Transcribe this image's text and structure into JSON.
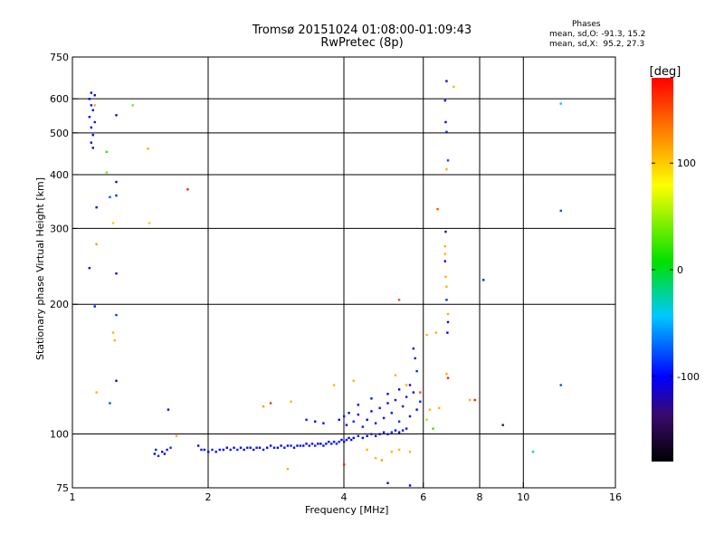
{
  "header": {
    "title_line1": "Tromsø 20151024 01:08:00-01:09:43",
    "title_line2": "RwPretec (8p)",
    "phases_title": "Phases",
    "phases_line1": "mean, sd,O: -91.3, 15.2",
    "phases_line2": "mean, sd,X:  95.2, 27.3"
  },
  "colorbar": {
    "unit": "[deg]",
    "ticks": [
      {
        "value": 100,
        "label": "100"
      },
      {
        "value": 0,
        "label": "0"
      },
      {
        "value": -100,
        "label": "-100"
      }
    ],
    "range": [
      -180,
      180
    ]
  },
  "chart_data": {
    "type": "scatter",
    "xlabel": "Frequency [MHz]",
    "ylabel": "Stationary phase Virtual Height [km]",
    "x_scale": "log",
    "y_scale": "log",
    "xlim": [
      1,
      16
    ],
    "ylim": [
      75,
      750
    ],
    "x_ticks": [
      1,
      2,
      4,
      6,
      8,
      10,
      16
    ],
    "y_ticks": [
      75,
      100,
      200,
      300,
      400,
      500,
      600,
      750
    ],
    "x_grid": [
      2,
      4,
      6,
      8,
      10
    ],
    "y_grid": [
      100,
      200,
      300,
      400,
      500,
      600
    ],
    "grid": true,
    "points": [
      {
        "x": 1.1,
        "y": 620,
        "phase": -105
      },
      {
        "x": 1.12,
        "y": 612,
        "phase": -110
      },
      {
        "x": 1.09,
        "y": 600,
        "phase": -100
      },
      {
        "x": 1.1,
        "y": 580,
        "phase": -95
      },
      {
        "x": 1.11,
        "y": 565,
        "phase": -108
      },
      {
        "x": 1.09,
        "y": 545,
        "phase": -100
      },
      {
        "x": 1.12,
        "y": 530,
        "phase": -95
      },
      {
        "x": 1.1,
        "y": 515,
        "phase": -110
      },
      {
        "x": 1.11,
        "y": 495,
        "phase": -100
      },
      {
        "x": 1.1,
        "y": 475,
        "phase": -115
      },
      {
        "x": 1.11,
        "y": 462,
        "phase": -105
      },
      {
        "x": 1.12,
        "y": 580,
        "phase": 110
      },
      {
        "x": 1.25,
        "y": 550,
        "phase": -110
      },
      {
        "x": 1.36,
        "y": 580,
        "phase": 40
      },
      {
        "x": 1.19,
        "y": 452,
        "phase": 20
      },
      {
        "x": 1.47,
        "y": 460,
        "phase": 110
      },
      {
        "x": 1.25,
        "y": 385,
        "phase": -120
      },
      {
        "x": 1.25,
        "y": 358,
        "phase": -90
      },
      {
        "x": 1.21,
        "y": 355,
        "phase": -75
      },
      {
        "x": 1.19,
        "y": 405,
        "phase": 40
      },
      {
        "x": 1.13,
        "y": 336,
        "phase": -110
      },
      {
        "x": 1.23,
        "y": 309,
        "phase": 100
      },
      {
        "x": 1.48,
        "y": 309,
        "phase": 100
      },
      {
        "x": 1.13,
        "y": 276,
        "phase": 120
      },
      {
        "x": 1.09,
        "y": 243,
        "phase": -100
      },
      {
        "x": 1.25,
        "y": 236,
        "phase": -105
      },
      {
        "x": 1.12,
        "y": 198,
        "phase": -95
      },
      {
        "x": 1.25,
        "y": 189,
        "phase": -85
      },
      {
        "x": 1.23,
        "y": 172,
        "phase": 110
      },
      {
        "x": 1.24,
        "y": 165,
        "phase": 110
      },
      {
        "x": 1.25,
        "y": 133,
        "phase": -105
      },
      {
        "x": 1.13,
        "y": 125,
        "phase": 110
      },
      {
        "x": 1.21,
        "y": 118,
        "phase": -80
      },
      {
        "x": 1.63,
        "y": 114,
        "phase": -100
      },
      {
        "x": 1.8,
        "y": 370,
        "phase": 170
      },
      {
        "x": 1.52,
        "y": 90,
        "phase": -100
      },
      {
        "x": 1.53,
        "y": 92,
        "phase": -95
      },
      {
        "x": 1.55,
        "y": 89,
        "phase": -90
      },
      {
        "x": 1.58,
        "y": 91,
        "phase": -110
      },
      {
        "x": 1.6,
        "y": 90,
        "phase": -100
      },
      {
        "x": 1.62,
        "y": 92,
        "phase": -95
      },
      {
        "x": 1.65,
        "y": 93,
        "phase": -90
      },
      {
        "x": 1.9,
        "y": 94,
        "phase": -100
      },
      {
        "x": 1.93,
        "y": 92,
        "phase": -95
      },
      {
        "x": 1.96,
        "y": 92,
        "phase": -100
      },
      {
        "x": 2.0,
        "y": 91,
        "phase": -105
      },
      {
        "x": 2.04,
        "y": 92,
        "phase": -90
      },
      {
        "x": 2.08,
        "y": 91,
        "phase": -100
      },
      {
        "x": 2.12,
        "y": 92,
        "phase": -95
      },
      {
        "x": 2.16,
        "y": 92,
        "phase": -100
      },
      {
        "x": 2.2,
        "y": 93,
        "phase": -110
      },
      {
        "x": 2.24,
        "y": 92,
        "phase": -95
      },
      {
        "x": 2.28,
        "y": 93,
        "phase": -100
      },
      {
        "x": 2.32,
        "y": 92,
        "phase": -90
      },
      {
        "x": 2.36,
        "y": 93,
        "phase": -100
      },
      {
        "x": 2.4,
        "y": 92,
        "phase": -105
      },
      {
        "x": 2.44,
        "y": 93,
        "phase": -95
      },
      {
        "x": 2.48,
        "y": 93,
        "phase": -100
      },
      {
        "x": 2.52,
        "y": 92,
        "phase": -110
      },
      {
        "x": 2.56,
        "y": 93,
        "phase": -95
      },
      {
        "x": 2.6,
        "y": 93,
        "phase": -100
      },
      {
        "x": 2.65,
        "y": 92,
        "phase": -90
      },
      {
        "x": 2.7,
        "y": 93,
        "phase": -100
      },
      {
        "x": 2.75,
        "y": 94,
        "phase": -105
      },
      {
        "x": 2.8,
        "y": 93,
        "phase": -95
      },
      {
        "x": 2.85,
        "y": 93,
        "phase": -100
      },
      {
        "x": 2.9,
        "y": 94,
        "phase": -110
      },
      {
        "x": 2.95,
        "y": 93,
        "phase": -95
      },
      {
        "x": 3.0,
        "y": 94,
        "phase": -100
      },
      {
        "x": 3.05,
        "y": 94,
        "phase": -90
      },
      {
        "x": 3.1,
        "y": 93,
        "phase": -100
      },
      {
        "x": 3.15,
        "y": 94,
        "phase": -105
      },
      {
        "x": 3.2,
        "y": 94,
        "phase": -95
      },
      {
        "x": 3.25,
        "y": 94,
        "phase": -100
      },
      {
        "x": 3.3,
        "y": 95,
        "phase": -110
      },
      {
        "x": 3.35,
        "y": 94,
        "phase": -95
      },
      {
        "x": 3.4,
        "y": 95,
        "phase": -100
      },
      {
        "x": 3.45,
        "y": 94,
        "phase": -90
      },
      {
        "x": 3.5,
        "y": 95,
        "phase": -100
      },
      {
        "x": 3.55,
        "y": 95,
        "phase": -105
      },
      {
        "x": 3.6,
        "y": 94,
        "phase": -95
      },
      {
        "x": 3.65,
        "y": 95,
        "phase": -100
      },
      {
        "x": 3.7,
        "y": 96,
        "phase": -110
      },
      {
        "x": 3.75,
        "y": 95,
        "phase": -95
      },
      {
        "x": 3.8,
        "y": 96,
        "phase": -100
      },
      {
        "x": 3.85,
        "y": 95,
        "phase": -90
      },
      {
        "x": 3.9,
        "y": 96,
        "phase": -100
      },
      {
        "x": 3.95,
        "y": 97,
        "phase": -105
      },
      {
        "x": 4.0,
        "y": 96,
        "phase": -95
      },
      {
        "x": 4.05,
        "y": 97,
        "phase": -100
      },
      {
        "x": 4.1,
        "y": 98,
        "phase": -110
      },
      {
        "x": 4.15,
        "y": 97,
        "phase": -95
      },
      {
        "x": 4.2,
        "y": 98,
        "phase": -100
      },
      {
        "x": 4.3,
        "y": 99,
        "phase": -90
      },
      {
        "x": 4.4,
        "y": 98,
        "phase": -100
      },
      {
        "x": 4.5,
        "y": 99,
        "phase": -105
      },
      {
        "x": 4.6,
        "y": 100,
        "phase": -95
      },
      {
        "x": 4.7,
        "y": 99,
        "phase": -100
      },
      {
        "x": 4.8,
        "y": 100,
        "phase": -110
      },
      {
        "x": 4.9,
        "y": 101,
        "phase": -95
      },
      {
        "x": 5.0,
        "y": 100,
        "phase": -100
      },
      {
        "x": 5.1,
        "y": 101,
        "phase": -90
      },
      {
        "x": 5.2,
        "y": 102,
        "phase": -100
      },
      {
        "x": 5.3,
        "y": 101,
        "phase": -105
      },
      {
        "x": 5.4,
        "y": 102,
        "phase": -95
      },
      {
        "x": 5.5,
        "y": 103,
        "phase": -100
      },
      {
        "x": 3.9,
        "y": 108,
        "phase": -100
      },
      {
        "x": 4.0,
        "y": 110,
        "phase": -95
      },
      {
        "x": 4.05,
        "y": 105,
        "phase": -105
      },
      {
        "x": 4.1,
        "y": 112,
        "phase": -100
      },
      {
        "x": 4.2,
        "y": 107,
        "phase": -90
      },
      {
        "x": 4.3,
        "y": 111,
        "phase": -100
      },
      {
        "x": 4.4,
        "y": 104,
        "phase": -95
      },
      {
        "x": 4.5,
        "y": 108,
        "phase": -100
      },
      {
        "x": 4.6,
        "y": 113,
        "phase": -110
      },
      {
        "x": 4.7,
        "y": 106,
        "phase": -100
      },
      {
        "x": 4.8,
        "y": 115,
        "phase": -95
      },
      {
        "x": 4.9,
        "y": 109,
        "phase": -100
      },
      {
        "x": 5.0,
        "y": 118,
        "phase": -105
      },
      {
        "x": 5.1,
        "y": 112,
        "phase": -95
      },
      {
        "x": 5.2,
        "y": 120,
        "phase": -100
      },
      {
        "x": 5.3,
        "y": 107,
        "phase": -90
      },
      {
        "x": 5.4,
        "y": 116,
        "phase": -100
      },
      {
        "x": 5.5,
        "y": 122,
        "phase": -95
      },
      {
        "x": 5.6,
        "y": 110,
        "phase": -100
      },
      {
        "x": 5.7,
        "y": 125,
        "phase": -110
      },
      {
        "x": 5.8,
        "y": 114,
        "phase": -100
      },
      {
        "x": 5.9,
        "y": 119,
        "phase": -95
      },
      {
        "x": 4.3,
        "y": 117,
        "phase": -100
      },
      {
        "x": 4.6,
        "y": 121,
        "phase": -95
      },
      {
        "x": 5.0,
        "y": 124,
        "phase": -100
      },
      {
        "x": 5.3,
        "y": 127,
        "phase": -105
      },
      {
        "x": 5.6,
        "y": 130,
        "phase": -100
      },
      {
        "x": 3.6,
        "y": 106,
        "phase": -100
      },
      {
        "x": 3.3,
        "y": 108,
        "phase": -95
      },
      {
        "x": 3.45,
        "y": 107,
        "phase": -100
      },
      {
        "x": 5.7,
        "y": 158,
        "phase": -100
      },
      {
        "x": 5.75,
        "y": 150,
        "phase": -95
      },
      {
        "x": 5.8,
        "y": 140,
        "phase": -90
      },
      {
        "x": 5.2,
        "y": 137,
        "phase": 110
      },
      {
        "x": 5.5,
        "y": 130,
        "phase": 110
      },
      {
        "x": 5.9,
        "y": 125,
        "phase": 150
      },
      {
        "x": 4.2,
        "y": 133,
        "phase": 110
      },
      {
        "x": 3.8,
        "y": 130,
        "phase": 110
      },
      {
        "x": 2.75,
        "y": 118,
        "phase": 160
      },
      {
        "x": 2.65,
        "y": 116,
        "phase": 120
      },
      {
        "x": 3.05,
        "y": 119,
        "phase": 110
      },
      {
        "x": 5.3,
        "y": 205,
        "phase": 150
      },
      {
        "x": 6.1,
        "y": 170,
        "phase": 110
      },
      {
        "x": 6.4,
        "y": 172,
        "phase": 110
      },
      {
        "x": 6.3,
        "y": 103,
        "phase": 20
      },
      {
        "x": 6.1,
        "y": 108,
        "phase": 50
      },
      {
        "x": 6.2,
        "y": 114,
        "phase": 110
      },
      {
        "x": 6.5,
        "y": 115,
        "phase": 110
      },
      {
        "x": 4.5,
        "y": 92,
        "phase": 110
      },
      {
        "x": 5.1,
        "y": 91,
        "phase": 110
      },
      {
        "x": 5.3,
        "y": 92,
        "phase": 110
      },
      {
        "x": 5.6,
        "y": 91,
        "phase": 110
      },
      {
        "x": 4.7,
        "y": 88,
        "phase": 110
      },
      {
        "x": 4.0,
        "y": 85,
        "phase": 170
      },
      {
        "x": 3.0,
        "y": 83,
        "phase": 110
      },
      {
        "x": 5.0,
        "y": 77,
        "phase": -100
      },
      {
        "x": 5.6,
        "y": 76,
        "phase": -100
      },
      {
        "x": 4.85,
        "y": 87,
        "phase": 120
      },
      {
        "x": 1.7,
        "y": 99,
        "phase": 110
      },
      {
        "x": 6.75,
        "y": 660,
        "phase": -100
      },
      {
        "x": 6.7,
        "y": 595,
        "phase": -95
      },
      {
        "x": 7.0,
        "y": 640,
        "phase": 110
      },
      {
        "x": 6.72,
        "y": 530,
        "phase": -100
      },
      {
        "x": 6.75,
        "y": 503,
        "phase": -95
      },
      {
        "x": 6.8,
        "y": 432,
        "phase": -80
      },
      {
        "x": 6.75,
        "y": 412,
        "phase": 110
      },
      {
        "x": 6.45,
        "y": 333,
        "phase": 150
      },
      {
        "x": 6.72,
        "y": 295,
        "phase": -140
      },
      {
        "x": 6.7,
        "y": 273,
        "phase": 110
      },
      {
        "x": 6.7,
        "y": 262,
        "phase": 110
      },
      {
        "x": 6.7,
        "y": 252,
        "phase": -100
      },
      {
        "x": 6.72,
        "y": 232,
        "phase": 110
      },
      {
        "x": 6.75,
        "y": 220,
        "phase": 110
      },
      {
        "x": 6.75,
        "y": 205,
        "phase": -90
      },
      {
        "x": 6.8,
        "y": 190,
        "phase": 110
      },
      {
        "x": 6.8,
        "y": 182,
        "phase": -100
      },
      {
        "x": 6.78,
        "y": 172,
        "phase": -100
      },
      {
        "x": 6.75,
        "y": 138,
        "phase": 110
      },
      {
        "x": 6.8,
        "y": 135,
        "phase": 170
      },
      {
        "x": 7.6,
        "y": 120,
        "phase": 110
      },
      {
        "x": 7.8,
        "y": 120,
        "phase": 170
      },
      {
        "x": 8.15,
        "y": 228,
        "phase": -90
      },
      {
        "x": 9.0,
        "y": 105,
        "phase": -140
      },
      {
        "x": 10.5,
        "y": 91,
        "phase": -30
      },
      {
        "x": 12.1,
        "y": 585,
        "phase": -40
      },
      {
        "x": 12.1,
        "y": 330,
        "phase": -80
      },
      {
        "x": 12.1,
        "y": 130,
        "phase": -80
      }
    ]
  }
}
